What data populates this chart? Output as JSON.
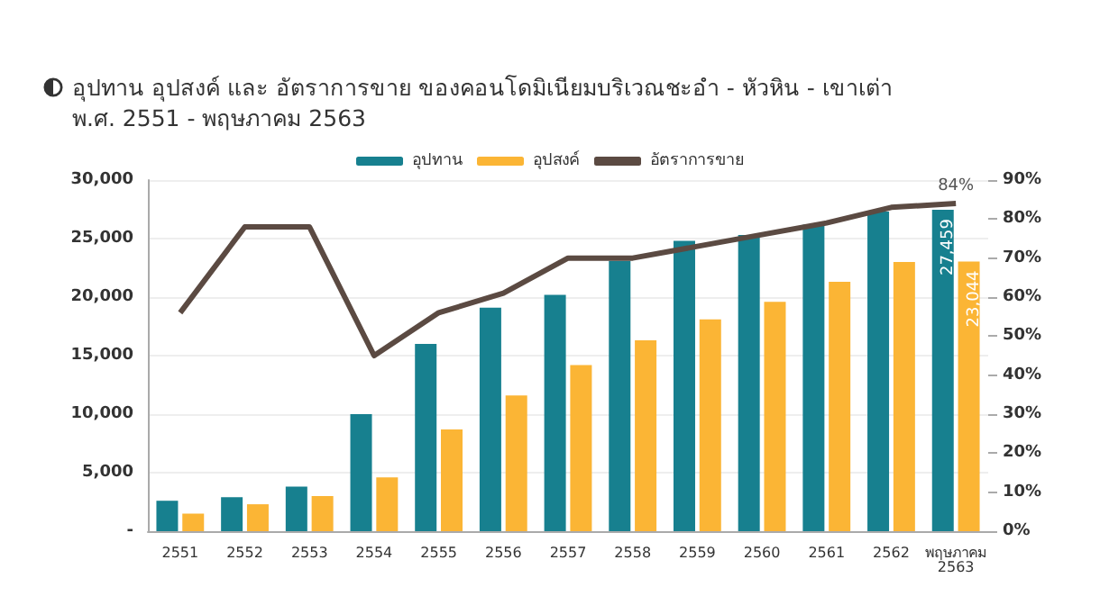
{
  "chart_data": {
    "type": "bar",
    "title": "อุปทาน อุปสงค์ และ อัตราการขาย ของคอนโดมิเนียมบริเวณชะอำ - หัวหิน - เขาเต่า",
    "subtitle": "พ.ศ. 2551 - พฤษภาคม 2563",
    "categories": [
      "2551",
      "2552",
      "2553",
      "2554",
      "2555",
      "2556",
      "2557",
      "2558",
      "2559",
      "2560",
      "2561",
      "2562",
      "พฤษภาคม 2563"
    ],
    "series": [
      {
        "name": "อุปทาน",
        "color": "#17808f",
        "values": [
          2600,
          2900,
          3800,
          10000,
          16000,
          19100,
          20200,
          23100,
          24800,
          25300,
          26200,
          27300,
          27459
        ],
        "value_labels": [
          null,
          null,
          null,
          null,
          null,
          null,
          null,
          null,
          null,
          null,
          null,
          null,
          "27,459"
        ]
      },
      {
        "name": "อุปสงค์",
        "color": "#fbb535",
        "values": [
          1500,
          2300,
          3000,
          4600,
          8700,
          11600,
          14200,
          16300,
          18100,
          19600,
          21300,
          23000,
          23044
        ],
        "value_labels": [
          null,
          null,
          null,
          null,
          null,
          null,
          null,
          null,
          null,
          null,
          null,
          null,
          "23,044"
        ]
      },
      {
        "name": "อัตราการขาย",
        "type": "line",
        "axis": "y2",
        "color": "#5b4a42",
        "marker": "none",
        "values": [
          56,
          78,
          78,
          45,
          56,
          61,
          70,
          70,
          73,
          76,
          79,
          83,
          84
        ],
        "value_labels": [
          null,
          null,
          null,
          null,
          null,
          null,
          null,
          null,
          null,
          null,
          null,
          null,
          "84%"
        ]
      }
    ],
    "ylim": [
      0,
      30000
    ],
    "yticks": [
      {
        "value": 0,
        "label": "-"
      },
      {
        "value": 5000,
        "label": "5,000"
      },
      {
        "value": 10000,
        "label": "10,000"
      },
      {
        "value": 15000,
        "label": "15,000"
      },
      {
        "value": 20000,
        "label": "20,000"
      },
      {
        "value": 25000,
        "label": "25,000"
      },
      {
        "value": 30000,
        "label": "30,000"
      }
    ],
    "y2lim": [
      0,
      90
    ],
    "y2ticks": [
      {
        "value": 0,
        "label": "0%"
      },
      {
        "value": 10,
        "label": "10%"
      },
      {
        "value": 20,
        "label": "20%"
      },
      {
        "value": 30,
        "label": "30%"
      },
      {
        "value": 40,
        "label": "40%"
      },
      {
        "value": 50,
        "label": "50%"
      },
      {
        "value": 60,
        "label": "60%"
      },
      {
        "value": 70,
        "label": "70%"
      },
      {
        "value": 80,
        "label": "80%"
      },
      {
        "value": 90,
        "label": "90%"
      }
    ],
    "grid": "y",
    "legend": "top"
  }
}
